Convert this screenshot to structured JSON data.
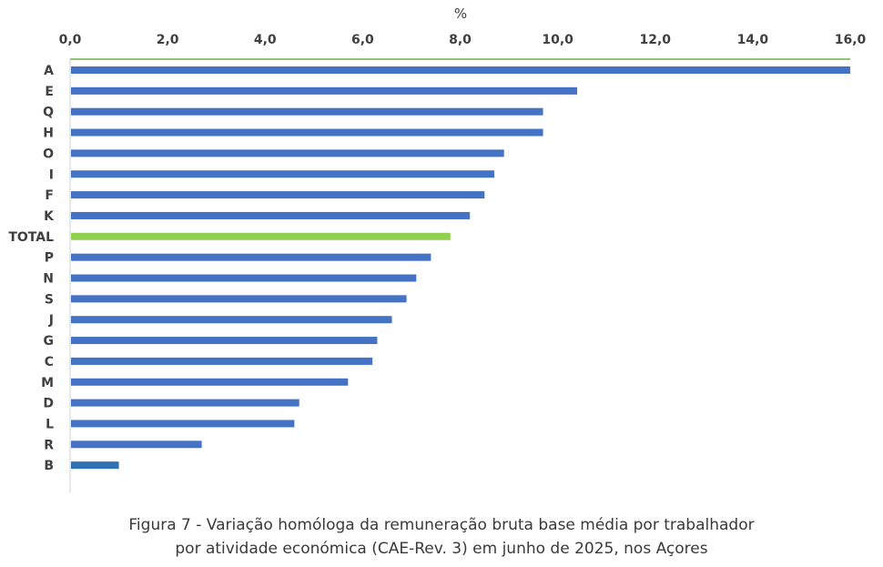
{
  "chart_data": {
    "type": "bar",
    "orientation": "horizontal",
    "axis_unit": "%",
    "xlim": [
      0,
      16
    ],
    "tick_values": [
      0,
      2,
      4,
      6,
      8,
      10,
      12,
      14,
      16
    ],
    "tick_labels": [
      "0,0",
      "2,0",
      "4,0",
      "6,0",
      "8,0",
      "10,0",
      "12,0",
      "14,0",
      "16,0"
    ],
    "categories": [
      "A",
      "E",
      "Q",
      "H",
      "O",
      "I",
      "F",
      "K",
      "TOTAL",
      "P",
      "N",
      "S",
      "J",
      "G",
      "C",
      "M",
      "D",
      "L",
      "R",
      "B"
    ],
    "values": [
      16.0,
      10.4,
      9.7,
      9.7,
      8.9,
      8.7,
      8.5,
      8.2,
      7.8,
      7.4,
      7.1,
      6.9,
      6.6,
      6.3,
      6.2,
      5.7,
      4.7,
      4.6,
      2.7,
      1.0
    ],
    "colors": {
      "default": "#4472c4",
      "total": "#92d050",
      "B": "#2e6fb5",
      "top_axis_line": "#70ad47",
      "left_axis_line": "#d0d0d0"
    },
    "xaxis_position": "top",
    "grid": false
  },
  "caption": {
    "line1": "Figura 7 - Variação homóloga da remuneração bruta base média por trabalhador",
    "line2": "por atividade económica (CAE-Rev. 3) em junho de 2025, nos Açores"
  }
}
